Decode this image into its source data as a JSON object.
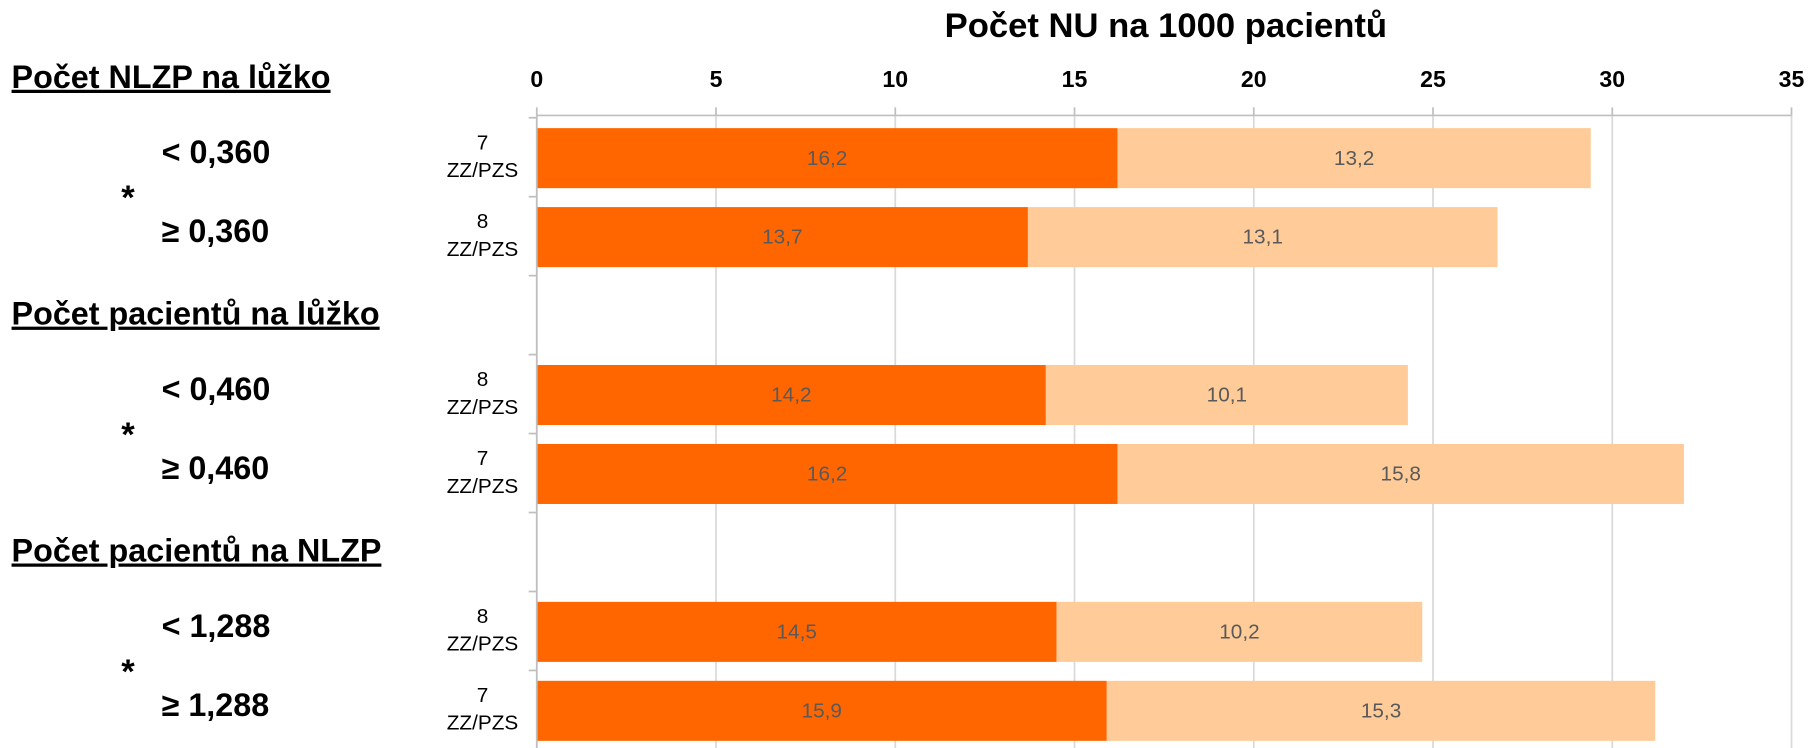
{
  "chart_data": {
    "type": "stacked-barh",
    "title": "Počet NU na 1000 pacientů",
    "categories": [
      "7\nZZ/PZS",
      "8\nZZ/PZS",
      null,
      "8\nZZ/PZS",
      "7\nZZ/PZS",
      null,
      "8\nZZ/PZS",
      "7\nZZ/PZS"
    ],
    "series": [
      {
        "color": "#ff6600",
        "values": [
          16.2,
          13.7,
          null,
          14.2,
          16.2,
          null,
          14.5,
          15.9
        ],
        "value_labels": [
          "16,2",
          "13,7",
          null,
          "14,2",
          "16,2",
          null,
          "14,5",
          "15,9"
        ]
      },
      {
        "color": "#ffcc99",
        "values": [
          13.2,
          13.1,
          null,
          10.1,
          15.8,
          null,
          10.2,
          15.3
        ],
        "value_labels": [
          "13,2",
          "13,1",
          null,
          "10,1",
          "15,8",
          null,
          "10,2",
          "15,3"
        ]
      }
    ],
    "groups": [
      {
        "title": "Počet NLZP na lůžko",
        "levels": [
          "< 0,360",
          "≥ 0,360"
        ],
        "marker": "*"
      },
      {
        "title": "Počet pacientů na lůžko",
        "levels": [
          "< 0,460",
          "≥ 0,460"
        ],
        "marker": "*"
      },
      {
        "title": "Počet pacientů na NLZP",
        "levels": [
          "< 1,288",
          "≥ 1,288"
        ],
        "marker": "*"
      }
    ],
    "xlim": [
      0,
      35
    ],
    "xticks": [
      0,
      5,
      10,
      15,
      20,
      25,
      30,
      35
    ],
    "grid": true
  }
}
